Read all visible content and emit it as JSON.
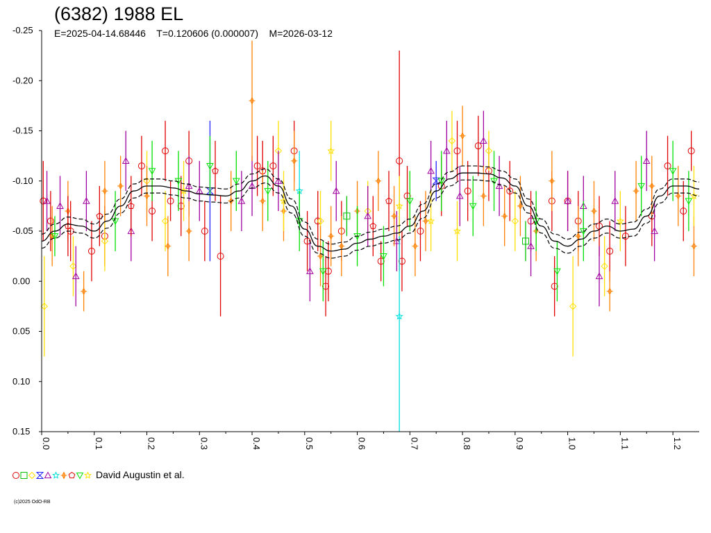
{
  "title": "(6382) 1988 EL",
  "subtitle": "E=2025-04-14.68446    T=0.120606 (0.000007)    M=2026-03-12",
  "legend_label": "David Augustin et al.",
  "copyright": "(c)2025 OdO-RB",
  "chart_data": {
    "type": "scatter",
    "title": "(6382) 1988 EL",
    "xlabel": "",
    "ylabel": "",
    "xlim": [
      0.0,
      1.25
    ],
    "ylim": [
      -0.25,
      0.15
    ],
    "y_inverted": true,
    "grid": false,
    "legend_placement": "bottom-left",
    "x_ticks": [
      0.0,
      0.1,
      0.2,
      0.3,
      0.4,
      0.5,
      0.6,
      0.7,
      0.8,
      0.9,
      1.0,
      1.1,
      1.2
    ],
    "x_tick_labels": [
      "0.0",
      "0.1",
      "0.2",
      "0.3",
      "0.4",
      "0.5",
      "0.6",
      "0.7",
      "0.8",
      "0.9",
      "1.0",
      "1.1",
      "1.2"
    ],
    "y_ticks": [
      -0.25,
      -0.2,
      -0.15,
      -0.1,
      -0.05,
      0.0,
      0.05,
      0.1,
      0.15
    ],
    "y_tick_labels": [
      "-0.25",
      "-0.20",
      "-0.15",
      "-0.10",
      "-0.05",
      "0.00",
      "0.05",
      "0.10",
      "0.15"
    ],
    "model_curve": {
      "x": [
        0.0,
        0.025,
        0.05,
        0.075,
        0.1,
        0.125,
        0.15,
        0.175,
        0.2,
        0.225,
        0.25,
        0.275,
        0.3,
        0.325,
        0.35,
        0.375,
        0.4,
        0.425,
        0.45,
        0.475,
        0.5,
        0.525,
        0.55,
        0.575,
        0.6,
        0.625,
        0.65,
        0.675,
        0.7,
        0.725,
        0.75,
        0.775,
        0.8,
        0.825,
        0.85,
        0.875,
        0.9,
        0.925,
        0.95,
        0.975,
        1.0,
        1.025,
        1.05,
        1.075,
        1.1,
        1.125,
        1.15,
        1.175,
        1.2,
        1.225,
        1.25
      ],
      "y": [
        -0.04,
        -0.05,
        -0.057,
        -0.055,
        -0.05,
        -0.06,
        -0.075,
        -0.09,
        -0.095,
        -0.095,
        -0.093,
        -0.09,
        -0.087,
        -0.086,
        -0.085,
        -0.09,
        -0.1,
        -0.105,
        -0.095,
        -0.075,
        -0.052,
        -0.035,
        -0.03,
        -0.032,
        -0.038,
        -0.042,
        -0.045,
        -0.048,
        -0.055,
        -0.07,
        -0.09,
        -0.102,
        -0.108,
        -0.108,
        -0.107,
        -0.103,
        -0.095,
        -0.075,
        -0.055,
        -0.04,
        -0.035,
        -0.042,
        -0.05,
        -0.055,
        -0.05,
        -0.052,
        -0.065,
        -0.085,
        -0.095,
        -0.095,
        -0.092
      ],
      "band": 0.007,
      "color": "#000000"
    },
    "series": [
      {
        "symbol": "circle",
        "color": "#e00000",
        "points": [
          [
            0.003,
            -0.08,
            0.04
          ],
          [
            0.017,
            -0.06,
            0.03
          ],
          [
            0.055,
            -0.05,
            0.03
          ],
          [
            0.095,
            -0.03,
            0.03
          ],
          [
            0.12,
            -0.045,
            0.03
          ],
          [
            0.19,
            -0.115,
            0.03
          ],
          [
            0.21,
            -0.07,
            0.03
          ],
          [
            0.235,
            -0.13,
            0.03
          ],
          [
            0.245,
            -0.08,
            0.02
          ],
          [
            0.265,
            -0.075,
            0.03
          ],
          [
            0.28,
            -0.12,
            0.03
          ],
          [
            0.31,
            -0.05,
            0.03
          ],
          [
            0.34,
            -0.025,
            0.06
          ],
          [
            0.41,
            -0.115,
            0.03
          ],
          [
            0.42,
            -0.11,
            0.03
          ],
          [
            0.44,
            -0.115,
            0.03
          ],
          [
            0.48,
            -0.13,
            0.03
          ],
          [
            0.505,
            -0.04,
            0.03
          ],
          [
            0.525,
            -0.06,
            0.03
          ],
          [
            0.54,
            0.005,
            0.03
          ],
          [
            0.545,
            -0.01,
            0.03
          ],
          [
            0.57,
            -0.05,
            0.03
          ],
          [
            0.645,
            -0.02,
            0.02
          ],
          [
            0.68,
            -0.12,
            0.11
          ],
          [
            0.685,
            -0.02,
            0.03
          ],
          [
            0.695,
            -0.085,
            0.03
          ],
          [
            0.72,
            -0.05,
            0.03
          ],
          [
            0.76,
            -0.095,
            0.03
          ],
          [
            0.79,
            -0.13,
            0.03
          ],
          [
            0.81,
            -0.09,
            0.03
          ],
          [
            0.83,
            -0.135,
            0.03
          ],
          [
            0.85,
            -0.11,
            0.03
          ],
          [
            0.89,
            -0.09,
            0.03
          ],
          [
            0.93,
            -0.06,
            0.03
          ],
          [
            0.97,
            -0.08,
            0.03
          ],
          [
            0.975,
            0.005,
            0.03
          ],
          [
            1.0,
            -0.08,
            0.03
          ],
          [
            1.02,
            -0.06,
            0.03
          ],
          [
            1.06,
            -0.055,
            0.03
          ],
          [
            1.08,
            -0.03,
            0.03
          ],
          [
            1.11,
            -0.045,
            0.03
          ],
          [
            1.16,
            -0.065,
            0.03
          ],
          [
            1.19,
            -0.115,
            0.03
          ],
          [
            1.22,
            -0.07,
            0.03
          ],
          [
            1.235,
            -0.13,
            0.02
          ]
        ]
      },
      {
        "symbol": "square",
        "color": "#00c000",
        "points": [
          [
            0.58,
            -0.065,
            0.02
          ],
          [
            0.92,
            -0.04,
            0.02
          ]
        ]
      },
      {
        "symbol": "diamond",
        "color": "#ffe000",
        "points": [
          [
            0.005,
            0.025,
            0.05
          ],
          [
            0.06,
            -0.015,
            0.03
          ],
          [
            0.12,
            -0.04,
            0.03
          ],
          [
            0.2,
            -0.1,
            0.03
          ],
          [
            0.235,
            -0.06,
            0.03
          ],
          [
            0.45,
            -0.13,
            0.03
          ],
          [
            0.53,
            -0.06,
            0.03
          ],
          [
            0.62,
            -0.07,
            0.03
          ],
          [
            0.78,
            -0.14,
            0.03
          ],
          [
            0.85,
            -0.13,
            0.02
          ],
          [
            0.9,
            -0.06,
            0.03
          ],
          [
            1.01,
            0.025,
            0.05
          ],
          [
            1.07,
            -0.015,
            0.03
          ]
        ]
      },
      {
        "symbol": "hourglass",
        "color": "#2020ff",
        "points": [
          [
            0.32,
            -0.09,
            0.07
          ],
          [
            0.75,
            -0.1,
            0.02
          ]
        ]
      },
      {
        "symbol": "triangle-up",
        "color": "#a000a0",
        "points": [
          [
            0.01,
            -0.08,
            0.03
          ],
          [
            0.035,
            -0.075,
            0.03
          ],
          [
            0.065,
            -0.005,
            0.03
          ],
          [
            0.085,
            -0.08,
            0.03
          ],
          [
            0.16,
            -0.12,
            0.03
          ],
          [
            0.17,
            -0.05,
            0.03
          ],
          [
            0.28,
            -0.095,
            0.03
          ],
          [
            0.3,
            -0.09,
            0.03
          ],
          [
            0.38,
            -0.08,
            0.03
          ],
          [
            0.4,
            -0.095,
            0.03
          ],
          [
            0.45,
            -0.1,
            0.03
          ],
          [
            0.51,
            -0.01,
            0.03
          ],
          [
            0.56,
            -0.09,
            0.03
          ],
          [
            0.62,
            -0.065,
            0.03
          ],
          [
            0.675,
            -0.04,
            0.03
          ],
          [
            0.74,
            -0.11,
            0.03
          ],
          [
            0.77,
            -0.13,
            0.03
          ],
          [
            0.795,
            -0.085,
            0.03
          ],
          [
            0.84,
            -0.14,
            0.03
          ],
          [
            0.87,
            -0.095,
            0.03
          ],
          [
            0.93,
            -0.035,
            0.03
          ],
          [
            1.0,
            -0.08,
            0.03
          ],
          [
            1.03,
            -0.075,
            0.03
          ],
          [
            1.06,
            -0.005,
            0.03
          ],
          [
            1.09,
            -0.08,
            0.03
          ],
          [
            1.15,
            -0.12,
            0.03
          ],
          [
            1.165,
            -0.05,
            0.03
          ]
        ]
      },
      {
        "symbol": "star",
        "color": "#00e0e0",
        "points": [
          [
            0.68,
            0.035,
            0.12
          ],
          [
            0.49,
            -0.09,
            0.04
          ]
        ]
      },
      {
        "symbol": "cross-diamond",
        "color": "#ff8000",
        "points": [
          [
            0.02,
            -0.045,
            0.03
          ],
          [
            0.05,
            -0.07,
            0.03
          ],
          [
            0.08,
            0.01,
            0.02
          ],
          [
            0.12,
            -0.09,
            0.03
          ],
          [
            0.15,
            -0.095,
            0.03
          ],
          [
            0.2,
            -0.085,
            0.03
          ],
          [
            0.24,
            -0.035,
            0.03
          ],
          [
            0.28,
            -0.05,
            0.03
          ],
          [
            0.36,
            -0.08,
            0.03
          ],
          [
            0.4,
            -0.18,
            0.06
          ],
          [
            0.42,
            -0.08,
            0.03
          ],
          [
            0.46,
            -0.07,
            0.03
          ],
          [
            0.48,
            -0.12,
            0.03
          ],
          [
            0.53,
            -0.025,
            0.03
          ],
          [
            0.55,
            -0.045,
            0.03
          ],
          [
            0.57,
            -0.035,
            0.03
          ],
          [
            0.6,
            -0.07,
            0.03
          ],
          [
            0.64,
            -0.1,
            0.03
          ],
          [
            0.67,
            -0.065,
            0.03
          ],
          [
            0.71,
            -0.035,
            0.03
          ],
          [
            0.73,
            -0.06,
            0.03
          ],
          [
            0.8,
            -0.145,
            0.03
          ],
          [
            0.84,
            -0.085,
            0.03
          ],
          [
            0.88,
            -0.065,
            0.03
          ],
          [
            0.91,
            -0.075,
            0.03
          ],
          [
            0.94,
            -0.05,
            0.03
          ],
          [
            0.97,
            -0.1,
            0.03
          ],
          [
            1.02,
            -0.045,
            0.03
          ],
          [
            1.05,
            -0.07,
            0.03
          ],
          [
            1.08,
            0.01,
            0.02
          ],
          [
            1.13,
            -0.09,
            0.03
          ],
          [
            1.16,
            -0.095,
            0.03
          ],
          [
            1.21,
            -0.085,
            0.03
          ],
          [
            1.24,
            -0.035,
            0.03
          ]
        ]
      },
      {
        "symbol": "pentagon",
        "color": "#e00000",
        "points": [
          [
            0.05,
            -0.055,
            0.03
          ],
          [
            0.11,
            -0.065,
            0.03
          ],
          [
            0.17,
            -0.075,
            0.03
          ],
          [
            0.33,
            -0.11,
            0.03
          ],
          [
            0.63,
            -0.055,
            0.03
          ],
          [
            0.66,
            -0.08,
            0.03
          ]
        ]
      },
      {
        "symbol": "triangle-down",
        "color": "#00e000",
        "points": [
          [
            0.025,
            -0.045,
            0.02
          ],
          [
            0.14,
            -0.06,
            0.03
          ],
          [
            0.21,
            -0.11,
            0.03
          ],
          [
            0.26,
            -0.1,
            0.03
          ],
          [
            0.32,
            -0.115,
            0.03
          ],
          [
            0.37,
            -0.1,
            0.03
          ],
          [
            0.43,
            -0.09,
            0.03
          ],
          [
            0.49,
            -0.06,
            0.03
          ],
          [
            0.535,
            -0.01,
            0.03
          ],
          [
            0.6,
            -0.045,
            0.03
          ],
          [
            0.65,
            -0.025,
            0.03
          ],
          [
            0.7,
            -0.08,
            0.03
          ],
          [
            0.76,
            -0.1,
            0.03
          ],
          [
            0.82,
            -0.075,
            0.03
          ],
          [
            0.86,
            -0.1,
            0.03
          ],
          [
            0.94,
            -0.06,
            0.03
          ],
          [
            0.98,
            -0.01,
            0.03
          ],
          [
            1.03,
            -0.05,
            0.03
          ],
          [
            1.14,
            -0.095,
            0.03
          ],
          [
            1.2,
            -0.11,
            0.03
          ],
          [
            1.23,
            -0.08,
            0.03
          ]
        ]
      },
      {
        "symbol": "star",
        "color": "#ffe000",
        "points": [
          [
            0.27,
            -0.09,
            0.03
          ],
          [
            0.46,
            -0.08,
            0.03
          ],
          [
            0.55,
            -0.13,
            0.03
          ],
          [
            0.68,
            -0.075,
            0.03
          ],
          [
            0.74,
            -0.06,
            0.03
          ],
          [
            0.79,
            -0.05,
            0.03
          ],
          [
            1.1,
            -0.06,
            0.03
          ],
          [
            1.24,
            -0.085,
            0.03
          ]
        ]
      }
    ],
    "legend_symbols": [
      {
        "symbol": "circle",
        "color": "#e00000"
      },
      {
        "symbol": "square",
        "color": "#00c000"
      },
      {
        "symbol": "diamond",
        "color": "#ffe000"
      },
      {
        "symbol": "hourglass",
        "color": "#2020ff"
      },
      {
        "symbol": "triangle-up",
        "color": "#a000a0"
      },
      {
        "symbol": "star",
        "color": "#00e0e0"
      },
      {
        "symbol": "cross-diamond",
        "color": "#ff8000"
      },
      {
        "symbol": "pentagon",
        "color": "#e00000"
      },
      {
        "symbol": "triangle-down",
        "color": "#00e000"
      },
      {
        "symbol": "star",
        "color": "#ffe000"
      }
    ]
  }
}
